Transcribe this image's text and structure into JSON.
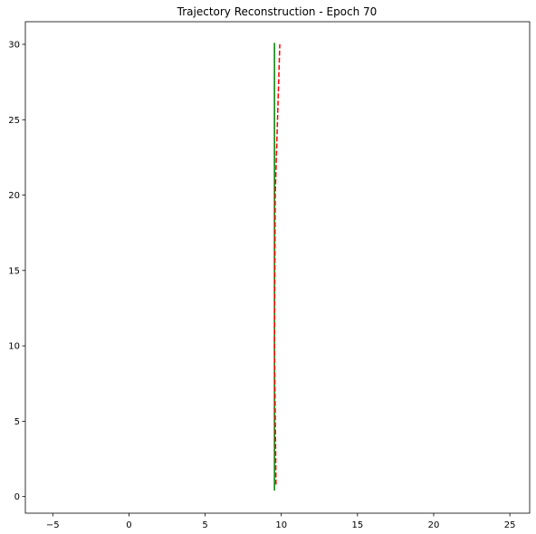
{
  "chart_data": {
    "type": "line",
    "title": "Trajectory Reconstruction - Epoch 70",
    "xlabel": "",
    "ylabel": "",
    "xlim": [
      -6.8,
      26.3
    ],
    "ylim": [
      -1.1,
      31.5
    ],
    "xticks": [
      -5,
      0,
      5,
      10,
      15,
      20,
      25
    ],
    "xtick_labels": [
      "−5",
      "0",
      "5",
      "10",
      "15",
      "20",
      "25"
    ],
    "yticks": [
      0,
      5,
      10,
      15,
      20,
      25,
      30
    ],
    "ytick_labels": [
      "0",
      "5",
      "10",
      "15",
      "20",
      "25",
      "30"
    ],
    "grid": false,
    "legend": false,
    "series": [
      {
        "color": "#008000",
        "style": "solid",
        "x": [
          9.55,
          9.55
        ],
        "y": [
          0.4,
          30.1
        ]
      },
      {
        "color": "#ff0000",
        "style": "dashed",
        "x": [
          9.65,
          9.55,
          9.6,
          9.9
        ],
        "y": [
          0.8,
          10.0,
          20.0,
          30.0
        ]
      }
    ]
  }
}
